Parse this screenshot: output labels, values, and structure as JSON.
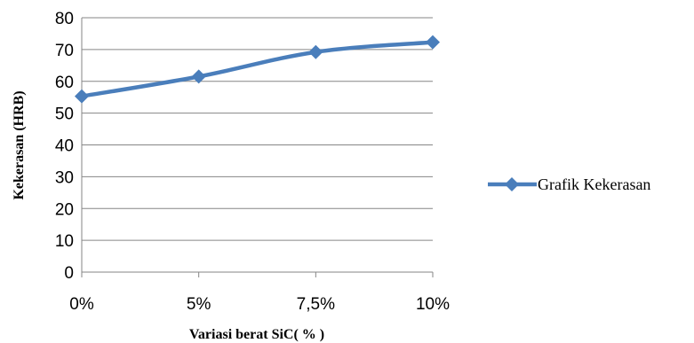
{
  "chart_data": {
    "type": "line",
    "categories": [
      "0%",
      "5%",
      "7,5%",
      "10%"
    ],
    "series": [
      {
        "name": "Grafik Kekerasan",
        "values": [
          55.3,
          61.5,
          69.2,
          72.3
        ],
        "color": "#4a7ebb",
        "marker": "diamond"
      }
    ],
    "xlabel": "Variasi berat SiC( % )",
    "ylabel": "Kekerasan  (HRB)",
    "ylim": [
      0,
      80
    ],
    "yticks": [
      0,
      10,
      20,
      30,
      40,
      50,
      60,
      70,
      80
    ],
    "grid": true,
    "legend_position": "right"
  }
}
